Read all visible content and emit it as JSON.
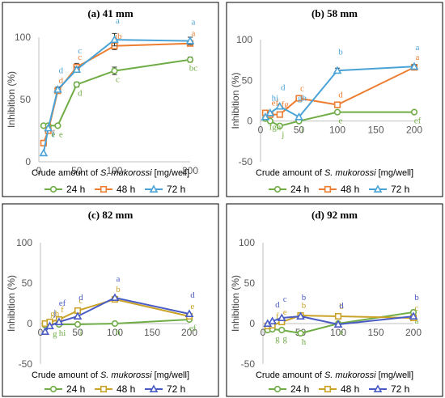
{
  "chart_data": [
    {
      "type": "line",
      "title": "(a) 41 mm",
      "xlabel": "Crude amount of S. mukorossi [mg/well]",
      "xlabel_parts": [
        "Crude amount of ",
        "S. mukorossi",
        " [mg/well]"
      ],
      "ylabel": "Inhibition (%)",
      "xlim": [
        0,
        200
      ],
      "ylim": [
        0,
        100
      ],
      "xticks": [
        0,
        50,
        100,
        150,
        200
      ],
      "xtick_labels": [
        "0",
        "50",
        "100",
        "",
        "200"
      ],
      "yticks": [
        0,
        50,
        100
      ],
      "ytick_labels": [
        "0",
        "50",
        "100"
      ],
      "x": [
        6.25,
        12.5,
        25,
        50,
        100,
        200
      ],
      "series": [
        {
          "name": "24 h",
          "color": "#70ad47",
          "marker": "circle",
          "values": [
            29,
            29,
            29,
            62,
            73,
            82
          ],
          "errors": [
            0,
            0,
            0,
            2,
            3,
            2
          ],
          "labels": [
            "e",
            "",
            "e",
            "d",
            "c",
            "bc"
          ]
        },
        {
          "name": "48 h",
          "color": "#ed7d31",
          "marker": "square",
          "values": [
            15,
            25,
            57,
            76,
            93,
            95
          ],
          "errors": [
            0,
            0,
            0,
            3,
            3,
            2
          ],
          "labels": [
            "f",
            "",
            "d",
            "c",
            "ab",
            "a"
          ]
        },
        {
          "name": "72 h",
          "color": "#4aa3d6",
          "marker": "triangle",
          "values": [
            7,
            27,
            58,
            74,
            98,
            97
          ],
          "errors": [
            0,
            0,
            2,
            2,
            5,
            3
          ],
          "labels": [
            "f",
            "",
            "d",
            "c",
            "a",
            "a"
          ]
        }
      ]
    },
    {
      "type": "line",
      "title": "(b) 58 mm",
      "xlabel": "Crude amount of S. mukorossi [mg/well]",
      "xlabel_parts": [
        "Crude amount of ",
        "S. mukorossi",
        " [mg/well]"
      ],
      "ylabel": "Inhibition (%)",
      "xlim": [
        0,
        200
      ],
      "ylim": [
        -50,
        100
      ],
      "xticks": [
        0,
        50,
        100,
        150,
        200
      ],
      "xtick_labels": [
        "0",
        "50",
        "100",
        "150",
        "200"
      ],
      "yticks": [
        -50,
        0,
        50,
        100
      ],
      "ytick_labels": [
        "-50",
        "0",
        "50",
        "100"
      ],
      "x": [
        6.25,
        12.5,
        25,
        50,
        100,
        200
      ],
      "series": [
        {
          "name": "24 h",
          "color": "#70ad47",
          "marker": "circle",
          "values": [
            3,
            0,
            -6,
            0,
            11,
            11
          ],
          "errors": [
            0,
            0,
            0,
            0,
            0,
            0
          ],
          "labels": [
            "fgh",
            "",
            "j",
            "i",
            "e",
            "ef"
          ]
        },
        {
          "name": "48 h",
          "color": "#ed7d31",
          "marker": "square",
          "values": [
            10,
            8,
            8,
            28,
            20,
            66
          ],
          "errors": [
            0,
            0,
            0,
            0,
            0,
            0
          ],
          "labels": [
            "ef",
            "",
            "efg",
            "c",
            "d",
            "a"
          ]
        },
        {
          "name": "72 h",
          "color": "#4aa3d6",
          "marker": "triangle",
          "values": [
            5,
            10,
            18,
            5,
            62,
            67
          ],
          "errors": [
            0,
            0,
            0,
            0,
            3,
            2
          ],
          "labels": [
            "hi",
            "",
            "d",
            "gh",
            "b",
            "a"
          ]
        }
      ]
    },
    {
      "type": "line",
      "title": "(c) 82 mm",
      "xlabel": "Crude amount of S. mukorossi [mg/well]",
      "xlabel_parts": [
        "Crude amount of ",
        "S. mukorossi",
        " [mg/well]"
      ],
      "ylabel": "Inhibition (%)",
      "xlim": [
        0,
        200
      ],
      "ylim": [
        -50,
        100
      ],
      "xticks": [
        0,
        50,
        100,
        150,
        200
      ],
      "xtick_labels": [
        "0",
        "50",
        "100",
        "150",
        "200"
      ],
      "yticks": [
        -50,
        0,
        50,
        100
      ],
      "ytick_labels": [
        "-50",
        "0",
        "50",
        "100"
      ],
      "x": [
        6.25,
        12.5,
        25,
        50,
        100,
        200
      ],
      "series": [
        {
          "name": "24 h",
          "color": "#70ad47",
          "marker": "circle",
          "values": [
            -2,
            0,
            -1,
            -1,
            0,
            5
          ],
          "errors": [
            0,
            0,
            0,
            0,
            0,
            0
          ],
          "labels": [
            "g",
            "",
            "hi",
            "i",
            "h",
            "ef"
          ]
        },
        {
          "name": "48 h",
          "color": "#c9a227",
          "marker": "square",
          "values": [
            0,
            2,
            5,
            16,
            30,
            9
          ],
          "errors": [
            0,
            0,
            0,
            0,
            0,
            0
          ],
          "labels": [
            "gh",
            "",
            "f",
            "c",
            "b",
            "e"
          ]
        },
        {
          "name": "72 h",
          "color": "#4a5cc4",
          "marker": "triangle",
          "values": [
            -10,
            -3,
            2,
            9,
            32,
            12
          ],
          "errors": [
            0,
            0,
            0,
            0,
            0,
            0
          ],
          "labels": [
            "j",
            "",
            "ef",
            "d",
            "a",
            "d"
          ]
        }
      ]
    },
    {
      "type": "line",
      "title": "(d) 92 mm",
      "xlabel": "Crude amount of S. mukorossi [mg/well]",
      "xlabel_parts": [
        "Crude amount of ",
        "S. mukorossi",
        " [mg/well]"
      ],
      "ylabel": "Inhibition (%)",
      "xlim": [
        0,
        200
      ],
      "ylim": [
        -50,
        100
      ],
      "xticks": [
        0,
        50,
        100,
        150,
        200
      ],
      "xtick_labels": [
        "0",
        "50",
        "100",
        "150",
        "200"
      ],
      "yticks": [
        -50,
        0,
        50,
        100
      ],
      "ytick_labels": [
        "-50",
        "0",
        "50",
        "100"
      ],
      "x": [
        6.25,
        12.5,
        25,
        50,
        100,
        200
      ],
      "series": [
        {
          "name": "24 h",
          "color": "#70ad47",
          "marker": "circle",
          "values": [
            -8,
            -7,
            -8,
            -12,
            0,
            14
          ],
          "errors": [
            0,
            0,
            0,
            0,
            0,
            0
          ],
          "labels": [
            "g",
            "",
            "g",
            "h",
            "e",
            "a"
          ]
        },
        {
          "name": "48 h",
          "color": "#c9a227",
          "marker": "square",
          "values": [
            -3,
            -2,
            2,
            10,
            9,
            7
          ],
          "errors": [
            0,
            0,
            0,
            0,
            0,
            0
          ],
          "labels": [
            "f",
            "",
            "e",
            "b",
            "b",
            "c"
          ]
        },
        {
          "name": "72 h",
          "color": "#4a5cc4",
          "marker": "triangle",
          "values": [
            0,
            3,
            7,
            9,
            -1,
            9
          ],
          "errors": [
            0,
            0,
            0,
            0,
            0,
            0
          ],
          "labels": [
            "d",
            "",
            "c",
            "b",
            "d",
            "b"
          ]
        }
      ]
    }
  ]
}
